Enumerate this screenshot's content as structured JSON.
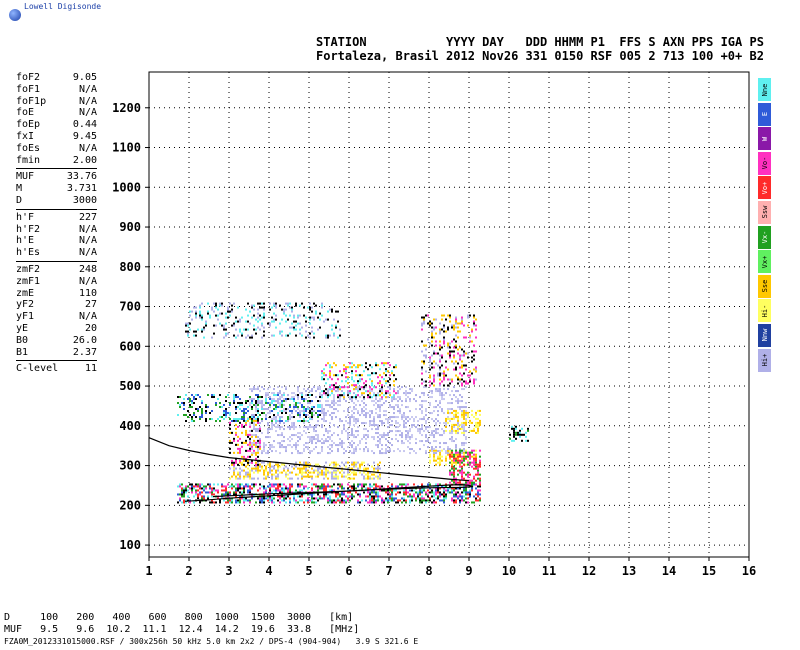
{
  "header": {
    "brand": "Lowell Digisonde",
    "station_header": "STATION           YYYY DAY   DDD HHMM P1  FFS S AXN PPS IGA PS",
    "station_values": "Fortaleza, Brasil 2012 Nov26 331 0150 RSF 005 2 713 100 +0+ B2"
  },
  "params": [
    {
      "label": "foF2",
      "value": "9.05"
    },
    {
      "label": "foF1",
      "value": "N/A"
    },
    {
      "label": "foF1p",
      "value": "N/A"
    },
    {
      "label": "foE",
      "value": "N/A"
    },
    {
      "label": "foEp",
      "value": "0.44"
    },
    {
      "label": "fxI",
      "value": "9.45"
    },
    {
      "label": "foEs",
      "value": "N/A"
    },
    {
      "label": "fmin",
      "value": "2.00",
      "sep": true
    },
    {
      "label": "MUF",
      "value": "33.76"
    },
    {
      "label": "M",
      "value": "3.731"
    },
    {
      "label": "D",
      "value": "3000",
      "sep": true
    },
    {
      "label": "h'F",
      "value": "227"
    },
    {
      "label": "h'F2",
      "value": "N/A"
    },
    {
      "label": "h'E",
      "value": "N/A"
    },
    {
      "label": "h'Es",
      "value": "N/A",
      "sep": true
    },
    {
      "label": "zmF2",
      "value": "248"
    },
    {
      "label": "zmF1",
      "value": "N/A"
    },
    {
      "label": "zmE",
      "value": "110"
    },
    {
      "label": "yF2",
      "value": "27"
    },
    {
      "label": "yF1",
      "value": "N/A"
    },
    {
      "label": "yE",
      "value": "20"
    },
    {
      "label": "B0",
      "value": "26.0"
    },
    {
      "label": "B1",
      "value": "2.37",
      "sep": true
    },
    {
      "label": "C-level",
      "value": "11"
    }
  ],
  "legend": [
    {
      "label": "Nne",
      "color": "#5ff0f0"
    },
    {
      "label": "E",
      "color": "#2f5bd8"
    },
    {
      "label": "W",
      "color": "#8a18a8"
    },
    {
      "label": "Vo-",
      "color": "#ff30c0"
    },
    {
      "label": "Vo+",
      "color": "#ff2a2a"
    },
    {
      "label": "Ssw",
      "color": "#ffb0b0"
    },
    {
      "label": "Vx-",
      "color": "#20a020"
    },
    {
      "label": "Vx+",
      "color": "#60f060"
    },
    {
      "label": "Sse",
      "color": "#ffc800"
    },
    {
      "label": "Hi-",
      "color": "#ffff60"
    },
    {
      "label": "Nnw",
      "color": "#2040a0"
    },
    {
      "label": "Hi+",
      "color": "#b0b0e8"
    }
  ],
  "footer": {
    "line1": "D     100   200   400   600   800  1000  1500  3000   [km]",
    "line2": "MUF   9.5   9.6  10.2  11.1  12.4  14.2  19.6  33.8   [MHz]",
    "line3": "FZA0M_2012331015000.RSF / 300x256h 50 kHz 5.0 km 2x2 / DPS-4 (904-904)   3.9 S 321.6 E"
  },
  "chart_data": {
    "type": "scatter",
    "xlabel": "",
    "ylabel": "",
    "xlim": [
      1,
      16
    ],
    "ylim": [
      70,
      1290
    ],
    "x_ticks": [
      1,
      2,
      3,
      4,
      5,
      6,
      7,
      8,
      9,
      10,
      11,
      12,
      13,
      14,
      15,
      16
    ],
    "y_ticks": [
      100,
      200,
      300,
      400,
      500,
      600,
      700,
      800,
      900,
      1000,
      1100,
      1200
    ],
    "grid": true,
    "grid_style": "dotted",
    "regions": [
      {
        "x": [
          1.7,
          9.3
        ],
        "y": [
          205,
          255
        ],
        "density": 0.55,
        "colors": [
          "#ff2a2a",
          "#ff30c0",
          "#20a020",
          "#5ff0f0",
          "#000000",
          "#2f5bd8"
        ]
      },
      {
        "x": [
          3.0,
          6.8
        ],
        "y": [
          265,
          310
        ],
        "density": 0.5,
        "colors": [
          "#ffff60",
          "#ffc800",
          "#b0b0e8"
        ]
      },
      {
        "x": [
          8.0,
          9.2
        ],
        "y": [
          300,
          340
        ],
        "density": 0.5,
        "colors": [
          "#ffff60",
          "#ffc800"
        ]
      },
      {
        "x": [
          3.5,
          8.9
        ],
        "y": [
          330,
          500
        ],
        "density": 0.3,
        "colors": [
          "#b0b0e8",
          "#c8c8f0"
        ]
      },
      {
        "x": [
          3.0,
          3.8
        ],
        "y": [
          300,
          420
        ],
        "density": 0.3,
        "colors": [
          "#000000",
          "#ff30c0",
          "#ffc800"
        ]
      },
      {
        "x": [
          8.5,
          9.3
        ],
        "y": [
          250,
          340
        ],
        "density": 0.55,
        "colors": [
          "#ff2a2a",
          "#ff30c0",
          "#20a020"
        ]
      },
      {
        "x": [
          1.7,
          5.3
        ],
        "y": [
          410,
          480
        ],
        "density": 0.28,
        "colors": [
          "#000000",
          "#5ff0f0",
          "#2f5bd8",
          "#20a020"
        ]
      },
      {
        "x": [
          5.3,
          7.2
        ],
        "y": [
          470,
          560
        ],
        "density": 0.28,
        "colors": [
          "#000000",
          "#5ff0f0",
          "#ffc800",
          "#ff30c0"
        ]
      },
      {
        "x": [
          7.8,
          9.2
        ],
        "y": [
          500,
          680
        ],
        "density": 0.28,
        "colors": [
          "#000000",
          "#ffc800",
          "#b0b0e8",
          "#ff30c0"
        ]
      },
      {
        "x": [
          1.9,
          5.8
        ],
        "y": [
          620,
          710
        ],
        "density": 0.2,
        "colors": [
          "#000000",
          "#b0b0e8",
          "#5ff0f0"
        ]
      },
      {
        "x": [
          10.0,
          10.5
        ],
        "y": [
          360,
          400
        ],
        "density": 0.4,
        "colors": [
          "#5ff0f0",
          "#000000",
          "#20a020"
        ]
      },
      {
        "x": [
          8.4,
          9.3
        ],
        "y": [
          380,
          440
        ],
        "density": 0.4,
        "colors": [
          "#ffff60",
          "#ffc800"
        ]
      }
    ],
    "curves": [
      {
        "name": "",
        "color": "#000000",
        "x": [
          1.0,
          1.5,
          2.0,
          2.5,
          3.0,
          3.5,
          4.0,
          4.5,
          5.0,
          5.5,
          6.0,
          6.5,
          7.0,
          7.5,
          8.0,
          8.5,
          9.0
        ],
        "y": [
          370,
          350,
          338,
          328,
          320,
          315,
          310,
          305,
          300,
          295,
          290,
          285,
          280,
          275,
          271,
          266,
          262
        ]
      },
      {
        "name": "",
        "color": "#000000",
        "x": [
          1.9,
          2.5,
          3.0,
          3.5,
          4.0,
          4.5,
          5.0,
          5.5,
          6.0,
          6.5,
          7.0,
          7.5,
          8.0,
          8.5,
          8.8,
          9.0,
          9.1,
          8.8,
          8.0,
          7.0,
          6.0,
          5.0,
          4.0,
          3.0,
          2.6
        ],
        "y": [
          210,
          214,
          218,
          221,
          224,
          227,
          230,
          233,
          236,
          239,
          242,
          245,
          248,
          251,
          252,
          250,
          247,
          245,
          244,
          241,
          236,
          232,
          229,
          224,
          222
        ]
      }
    ]
  }
}
